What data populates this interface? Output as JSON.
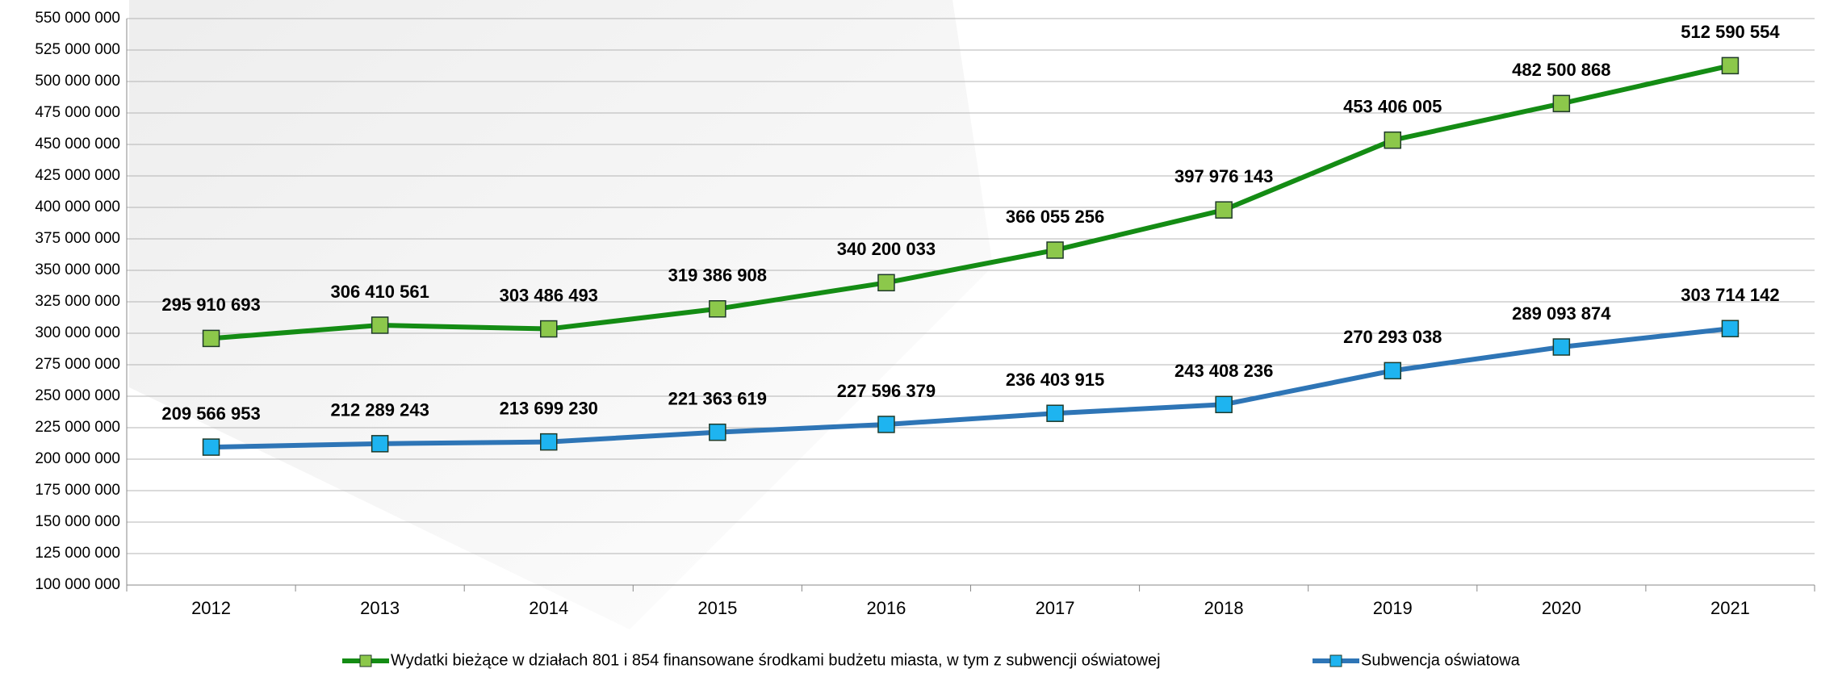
{
  "chart_data": {
    "type": "line",
    "categories": [
      "2012",
      "2013",
      "2014",
      "2015",
      "2016",
      "2017",
      "2018",
      "2019",
      "2020",
      "2021"
    ],
    "series": [
      {
        "name": "Wydatki bieżące w działach 801 i 854 finansowane środkami budżetu miasta, w tym z subwencji oświatowej",
        "color": "#148c14",
        "marker_color": "#8cc84b",
        "values": [
          295910693,
          306410561,
          303486493,
          319386908,
          340200033,
          366055256,
          397976143,
          453406005,
          482500868,
          512590554
        ],
        "value_labels": [
          "295 910 693",
          "306 410 561",
          "303 486 493",
          "319 386 908",
          "340 200 033",
          "366 055 256",
          "397 976 143",
          "453 406 005",
          "482 500 868",
          "512 590 554"
        ]
      },
      {
        "name": "Subwencja oświatowa",
        "color": "#2e75b6",
        "marker_color": "#1eb4f0",
        "values": [
          209566953,
          212289243,
          213699230,
          221363619,
          227596379,
          236403915,
          243408236,
          270293038,
          289093874,
          303714142
        ],
        "value_labels": [
          "209 566 953",
          "212 289 243",
          "213 699 230",
          "221 363 619",
          "227 596 379",
          "236 403 915",
          "243 408 236",
          "270 293 038",
          "289 093 874",
          "303 714 142"
        ]
      }
    ],
    "ylim": [
      100000000,
      550000000
    ],
    "yticks": [
      {
        "value": 100000000,
        "label": "100 000 000"
      },
      {
        "value": 125000000,
        "label": "125 000 000"
      },
      {
        "value": 150000000,
        "label": "150 000 000"
      },
      {
        "value": 175000000,
        "label": "175 000 000"
      },
      {
        "value": 200000000,
        "label": "200 000 000"
      },
      {
        "value": 225000000,
        "label": "225 000 000"
      },
      {
        "value": 250000000,
        "label": "250 000 000"
      },
      {
        "value": 275000000,
        "label": "275 000 000"
      },
      {
        "value": 300000000,
        "label": "300 000 000"
      },
      {
        "value": 325000000,
        "label": "325 000 000"
      },
      {
        "value": 350000000,
        "label": "350 000 000"
      },
      {
        "value": 375000000,
        "label": "375 000 000"
      },
      {
        "value": 400000000,
        "label": "400 000 000"
      },
      {
        "value": 425000000,
        "label": "425 000 000"
      },
      {
        "value": 450000000,
        "label": "450 000 000"
      },
      {
        "value": 475000000,
        "label": "475 000 000"
      },
      {
        "value": 500000000,
        "label": "500 000 000"
      },
      {
        "value": 525000000,
        "label": "525 000 000"
      },
      {
        "value": 550000000,
        "label": "550 000 000"
      }
    ],
    "grid": true,
    "legend": "bottom"
  }
}
